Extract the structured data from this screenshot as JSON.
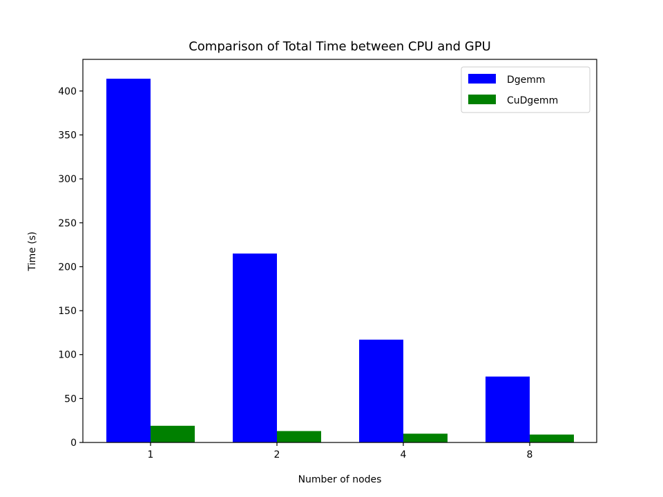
{
  "chart_data": {
    "type": "bar",
    "title": "Comparison of Total Time between CPU and GPU",
    "xlabel": "Number of nodes",
    "ylabel": "Time (s)",
    "categories": [
      "1",
      "2",
      "4",
      "8"
    ],
    "series": [
      {
        "name": "Dgemm",
        "color": "#0000ff",
        "values": [
          414,
          215,
          117,
          75
        ]
      },
      {
        "name": "CuDgemm",
        "color": "#008000",
        "values": [
          19,
          13,
          10,
          9
        ]
      }
    ],
    "ylim": [
      0,
      436
    ],
    "yticks": [
      0,
      50,
      100,
      150,
      200,
      250,
      300,
      350,
      400
    ],
    "grid": false,
    "legend_position": "top-right"
  }
}
